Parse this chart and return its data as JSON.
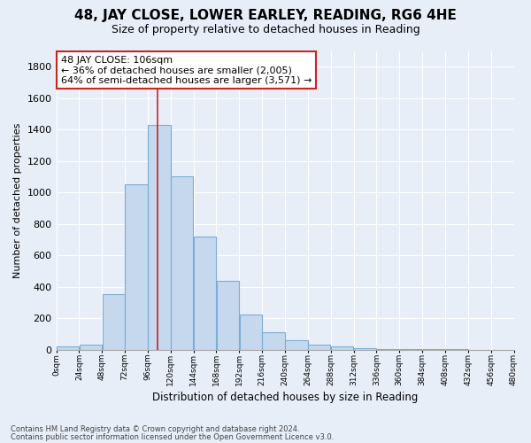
{
  "title": "48, JAY CLOSE, LOWER EARLEY, READING, RG6 4HE",
  "subtitle": "Size of property relative to detached houses in Reading",
  "xlabel": "Distribution of detached houses by size in Reading",
  "ylabel": "Number of detached properties",
  "bar_color": "#c5d8ee",
  "bar_edge_color": "#7aadd4",
  "bin_edges": [
    0,
    24,
    48,
    72,
    96,
    120,
    144,
    168,
    192,
    216,
    240,
    264,
    288,
    312,
    336,
    360,
    384,
    408,
    432,
    456,
    480
  ],
  "bin_labels": [
    "0sqm",
    "24sqm",
    "48sqm",
    "72sqm",
    "96sqm",
    "120sqm",
    "144sqm",
    "168sqm",
    "192sqm",
    "216sqm",
    "240sqm",
    "264sqm",
    "288sqm",
    "312sqm",
    "336sqm",
    "360sqm",
    "384sqm",
    "408sqm",
    "432sqm",
    "456sqm",
    "480sqm"
  ],
  "counts": [
    20,
    30,
    350,
    1050,
    1430,
    1100,
    720,
    435,
    225,
    110,
    60,
    30,
    20,
    10,
    5,
    3,
    1,
    1,
    0,
    0,
    0
  ],
  "vline_x": 106,
  "vline_color": "#cc2222",
  "ylim": [
    0,
    1900
  ],
  "yticks": [
    0,
    200,
    400,
    600,
    800,
    1000,
    1200,
    1400,
    1600,
    1800
  ],
  "ann_label": "48 JAY CLOSE: 106sqm",
  "ann_line1": "← 36% of detached houses are smaller (2,005)",
  "ann_line2": "64% of semi-detached houses are larger (3,571) →",
  "ann_box_color": "#ffffff",
  "ann_box_edge": "#cc2222",
  "footnote1": "Contains HM Land Registry data © Crown copyright and database right 2024.",
  "footnote2": "Contains public sector information licensed under the Open Government Licence v3.0.",
  "background_color": "#e8eef8",
  "grid_color": "#ffffff",
  "title_fontsize": 11,
  "subtitle_fontsize": 9
}
